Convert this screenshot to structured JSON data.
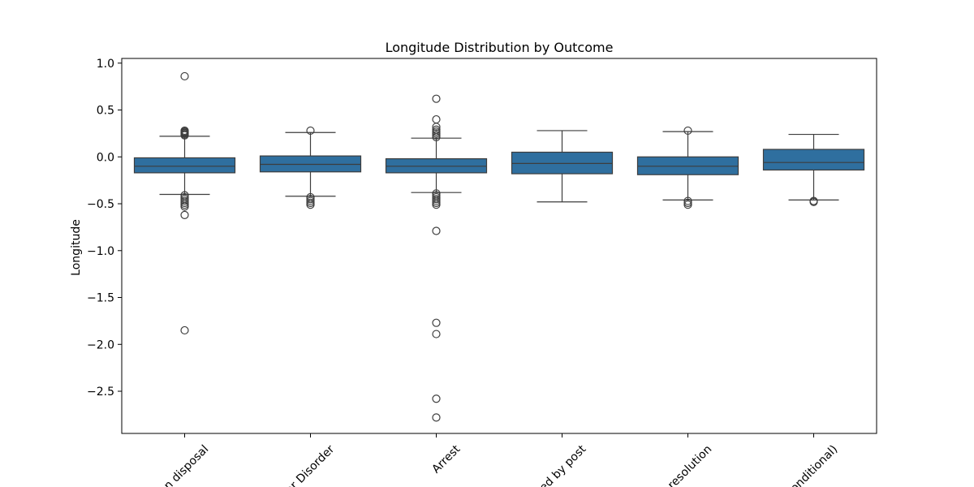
{
  "chart_data": {
    "type": "box",
    "title": "Longitude Distribution by Outcome",
    "xlabel": "",
    "ylabel": "Longitude",
    "ylim": [
      -2.95,
      1.05
    ],
    "yticks": [
      1.0,
      0.5,
      0.0,
      -0.5,
      -1.0,
      -1.5,
      -2.0,
      -2.5
    ],
    "ytick_labels": [
      "1.0",
      "0.5",
      "0.0",
      "−0.5",
      "−1.0",
      "−1.5",
      "−2.0",
      "−2.5"
    ],
    "grid": false,
    "legend": "none",
    "box_color": "#2f6f9f",
    "categories": [
      "Local resolution disposal",
      "Penalty Notice for Disorder",
      "Arrest",
      "Summons / charged by post",
      "Community resolution",
      "Caution (simple or conditional)"
    ],
    "category_labels": [
      "on disposal",
      "for Disorder",
      "Arrest",
      "ged by post",
      "y resolution",
      "onditional)"
    ],
    "boxes": [
      {
        "whisker_low": -0.4,
        "q1": -0.17,
        "median": -0.1,
        "q3": -0.01,
        "whisker_high": 0.22,
        "outliers": [
          0.86,
          0.28,
          0.27,
          0.26,
          0.25,
          0.24,
          0.23,
          -0.41,
          -0.43,
          -0.45,
          -0.47,
          -0.49,
          -0.51,
          -0.53,
          -0.62,
          -1.85
        ]
      },
      {
        "whisker_low": -0.42,
        "q1": -0.16,
        "median": -0.08,
        "q3": 0.01,
        "whisker_high": 0.26,
        "outliers": [
          0.28,
          -0.43,
          -0.45,
          -0.47,
          -0.49,
          -0.51
        ]
      },
      {
        "whisker_low": -0.38,
        "q1": -0.17,
        "median": -0.1,
        "q3": -0.02,
        "whisker_high": 0.2,
        "outliers": [
          0.62,
          0.4,
          0.32,
          0.29,
          0.27,
          0.25,
          0.23,
          0.21,
          -0.39,
          -0.41,
          -0.43,
          -0.45,
          -0.47,
          -0.49,
          -0.51,
          -0.79,
          -1.77,
          -1.89,
          -2.58,
          -2.78
        ]
      },
      {
        "whisker_low": -0.48,
        "q1": -0.18,
        "median": -0.07,
        "q3": 0.05,
        "whisker_high": 0.28,
        "outliers": []
      },
      {
        "whisker_low": -0.46,
        "q1": -0.19,
        "median": -0.1,
        "q3": 0.0,
        "whisker_high": 0.27,
        "outliers": [
          0.28,
          -0.47,
          -0.49,
          -0.51
        ]
      },
      {
        "whisker_low": -0.46,
        "q1": -0.14,
        "median": -0.06,
        "q3": 0.08,
        "whisker_high": 0.24,
        "outliers": [
          -0.47,
          -0.48
        ]
      }
    ]
  }
}
